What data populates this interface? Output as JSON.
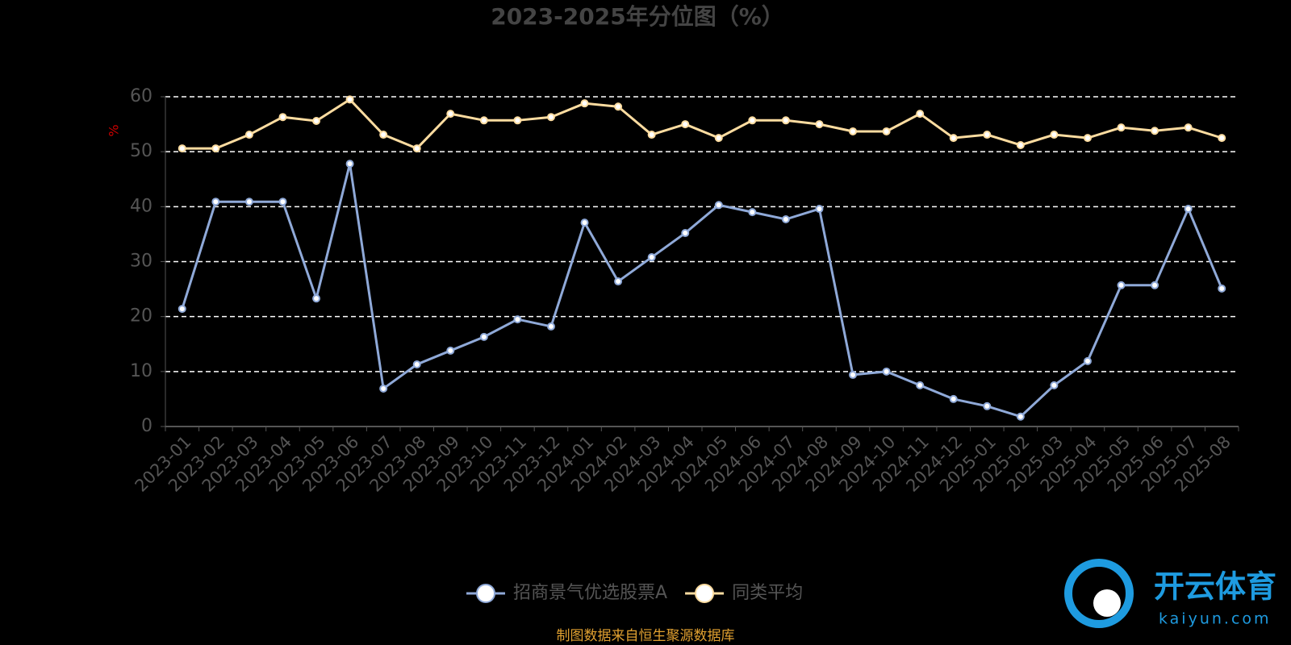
{
  "chart_data": {
    "type": "line",
    "title": "2023-2025年分位图（%）",
    "ylabel": "%",
    "categories": [
      "2023-01",
      "2023-02",
      "2023-03",
      "2023-04",
      "2023-05",
      "2023-06",
      "2023-07",
      "2023-08",
      "2023-09",
      "2023-10",
      "2023-11",
      "2023-12",
      "2024-01",
      "2024-02",
      "2024-03",
      "2024-04",
      "2024-05",
      "2024-06",
      "2024-07",
      "2024-08",
      "2024-09",
      "2024-10",
      "2024-11",
      "2024-12",
      "2025-01",
      "2025-02",
      "2025-03",
      "2025-04",
      "2025-05",
      "2025-06",
      "2025-07",
      "2025-08"
    ],
    "series": [
      {
        "name": "招商景气优选股票A",
        "color": "#8fa9d8",
        "values": [
          21.4,
          40.9,
          40.9,
          40.9,
          23.3,
          47.8,
          6.9,
          11.3,
          13.8,
          16.3,
          19.5,
          18.2,
          37.1,
          26.4,
          30.8,
          35.2,
          40.3,
          39.0,
          37.7,
          39.6,
          9.4,
          10.0,
          7.5,
          5.0,
          3.7,
          1.8,
          7.5,
          11.9,
          25.7,
          25.7,
          39.6,
          25.1
        ]
      },
      {
        "name": "同类平均",
        "color": "#fddca0",
        "values": [
          50.6,
          50.6,
          53.1,
          56.3,
          55.6,
          59.5,
          53.1,
          50.6,
          56.9,
          55.7,
          55.7,
          56.3,
          58.8,
          58.2,
          53.1,
          55.0,
          52.5,
          55.7,
          55.7,
          55.0,
          53.7,
          53.7,
          56.9,
          52.5,
          53.1,
          51.2,
          53.1,
          52.5,
          54.4,
          53.8,
          54.4,
          52.5
        ]
      }
    ],
    "ylim": [
      0,
      60
    ],
    "yticks": [
      0,
      10,
      20,
      30,
      40,
      50,
      60
    ],
    "grid": true,
    "source": "制图数据来自恒生聚源数据库",
    "watermark": {
      "brand": "开云体育",
      "site": "kaiyun.com"
    }
  }
}
